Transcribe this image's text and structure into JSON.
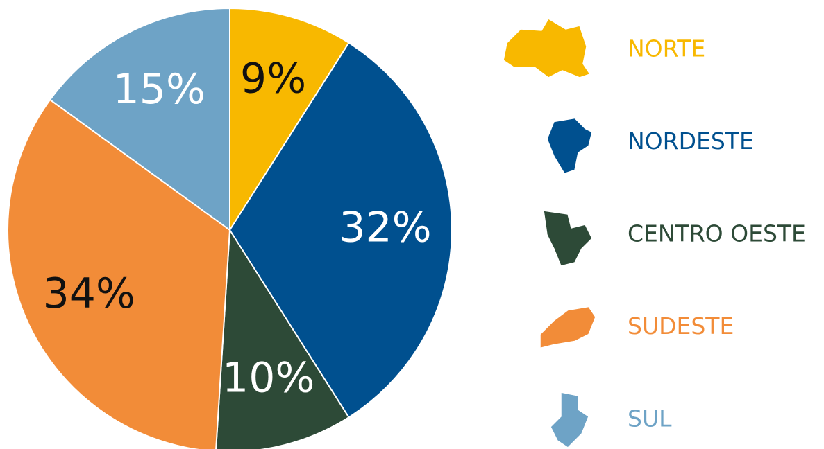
{
  "chart_data": {
    "type": "pie",
    "categories": [
      "NORTE",
      "NORDESTE",
      "CENTRO OESTE",
      "SUDESTE",
      "SUL"
    ],
    "values": [
      9,
      32,
      10,
      34,
      15
    ],
    "value_labels": [
      "9%",
      "32%",
      "10%",
      "34%",
      "15%"
    ],
    "colors": [
      "#f8b800",
      "#00508f",
      "#2d4a37",
      "#f28c38",
      "#6ea3c6"
    ]
  }
}
